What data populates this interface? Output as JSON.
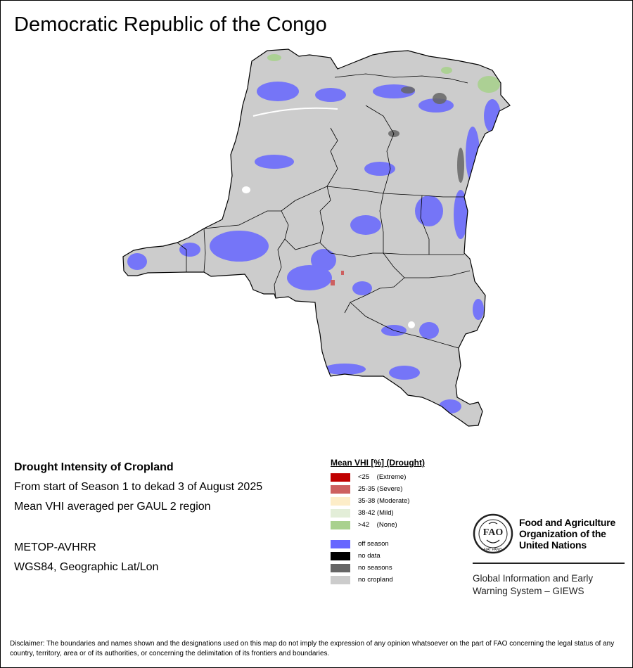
{
  "title": "Democratic Republic of the Congo",
  "info": {
    "heading": "Drought Intensity of Cropland",
    "period": "From start of Season 1 to dekad 3 of August 2025",
    "method": "Mean VHI averaged per GAUL 2 region",
    "sensor": "METOP-AVHRR",
    "projection": "WGS84, Geographic Lat/Lon"
  },
  "legend": {
    "title": "Mean VHI [%] (Drought)",
    "drought_classes": [
      {
        "label": "<25    (Extreme)",
        "color": "#c00000"
      },
      {
        "label": "25-35 (Severe)",
        "color": "#cd6060"
      },
      {
        "label": "35-38 (Moderate)",
        "color": "#fdedc8"
      },
      {
        "label": "38-42 (Mild)",
        "color": "#e3eed8"
      },
      {
        "label": ">42    (None)",
        "color": "#a9d18e"
      }
    ],
    "other_classes": [
      {
        "label": "off season",
        "color": "#6666ff"
      },
      {
        "label": "no data",
        "color": "#000000"
      },
      {
        "label": "no seasons",
        "color": "#666666"
      },
      {
        "label": "no cropland",
        "color": "#cccccc"
      }
    ]
  },
  "fao": {
    "logo_text": "FAO",
    "motto": "FIAT PANIS",
    "org_name": [
      "Food and Agriculture",
      "Organization of the",
      "United Nations"
    ],
    "system_name": [
      "Global Information and Early",
      "Warning System – GIEWS"
    ]
  },
  "disclaimer": "Disclaimer: The boundaries and names shown and the designations used on this map do not imply the expression of any opinion whatsoever on the part of FAO concerning the legal status of any country, territory, area or of its authorities, or concerning the delimitation of its frontiers and boundaries.",
  "colors": {
    "land": "#cccccc",
    "off_season": "#6666ff",
    "no_seasons": "#666666",
    "none_drought": "#a9d18e",
    "severe": "#cd6060",
    "border": "#000000"
  }
}
